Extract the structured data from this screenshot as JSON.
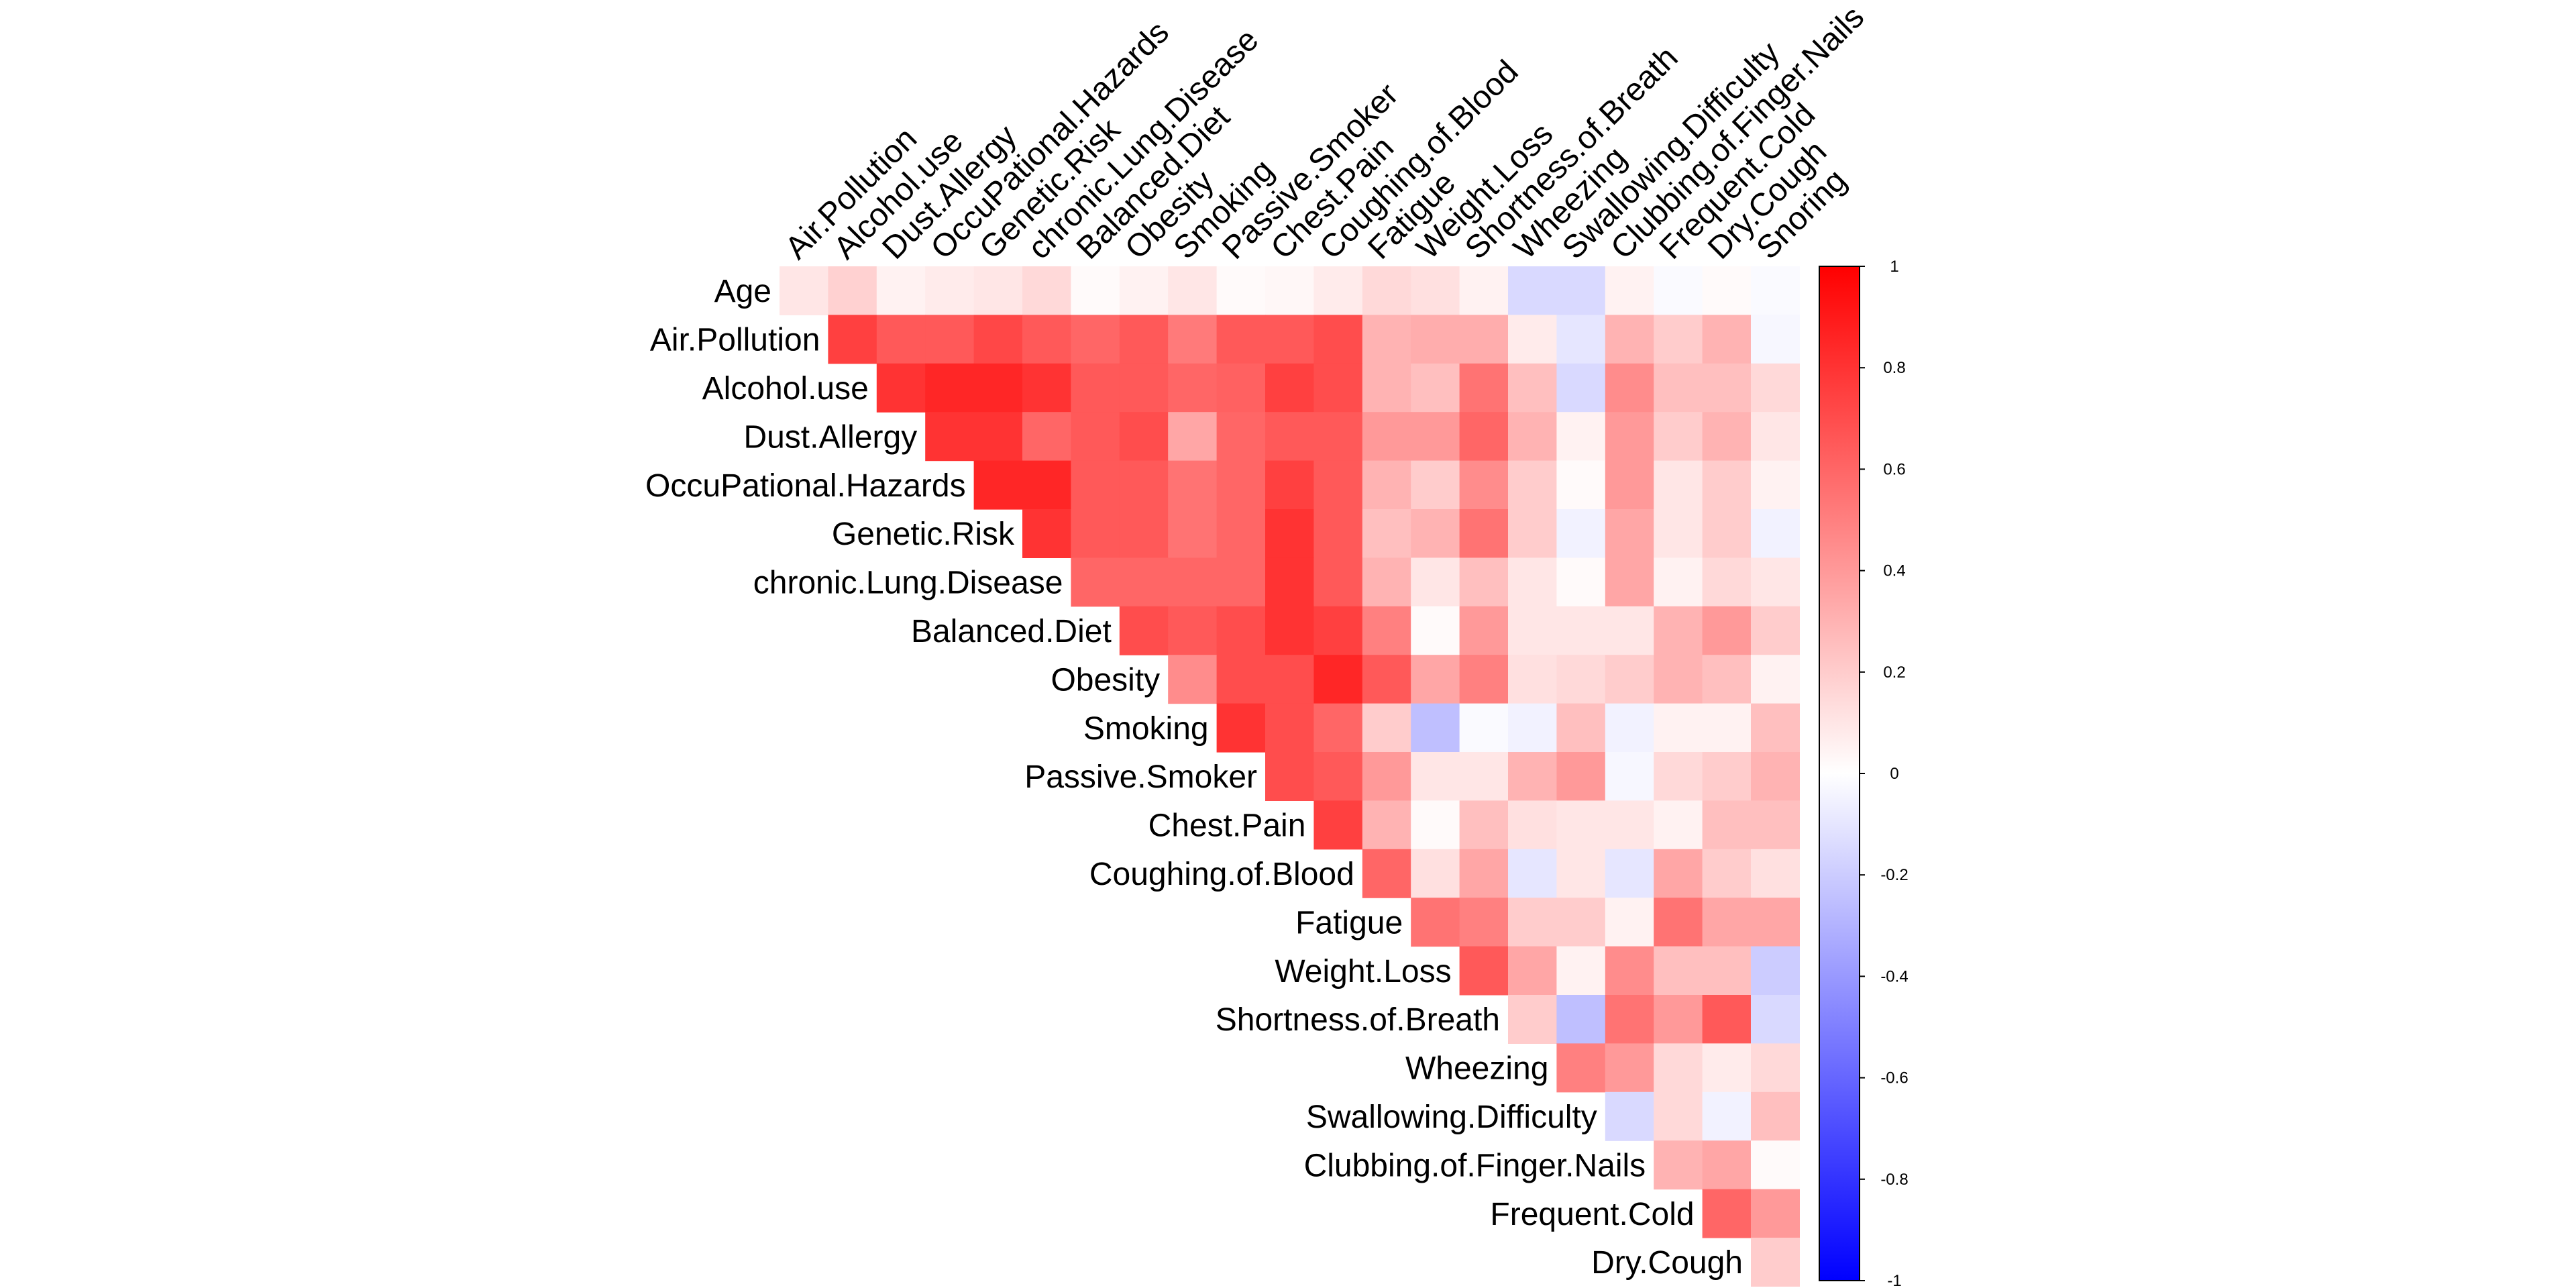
{
  "chart_data": {
    "type": "heatmap",
    "layout": "upper-triangle",
    "title": "",
    "xlabel": "",
    "ylabel": "",
    "row_labels": [
      "Age",
      "Air.Pollution",
      "Alcohol.use",
      "Dust.Allergy",
      "OccuPational.Hazards",
      "Genetic.Risk",
      "chronic.Lung.Disease",
      "Balanced.Diet",
      "Obesity",
      "Smoking",
      "Passive.Smoker",
      "Chest.Pain",
      "Coughing.of.Blood",
      "Fatigue",
      "Weight.Loss",
      "Shortness.of.Breath",
      "Wheezing",
      "Swallowing.Difficulty",
      "Clubbing.of.Finger.Nails",
      "Frequent.Cold",
      "Dry.Cough"
    ],
    "col_labels": [
      "Air.Pollution",
      "Alcohol.use",
      "Dust.Allergy",
      "OccuPational.Hazards",
      "Genetic.Risk",
      "chronic.Lung.Disease",
      "Balanced.Diet",
      "Obesity",
      "Smoking",
      "Passive.Smoker",
      "Chest.Pain",
      "Coughing.of.Blood",
      "Fatigue",
      "Weight.Loss",
      "Shortness.of.Breath",
      "Wheezing",
      "Swallowing.Difficulty",
      "Clubbing.of.Finger.Nails",
      "Frequent.Cold",
      "Dry.Cough",
      "Snoring"
    ],
    "values": [
      [
        0.1,
        0.18,
        0.05,
        0.08,
        0.1,
        0.15,
        0.02,
        0.05,
        0.1,
        0.02,
        0.03,
        0.08,
        0.15,
        0.12,
        0.05,
        -0.15,
        -0.15,
        0.05,
        -0.02,
        0.02,
        -0.02
      ],
      [
        0.75,
        0.65,
        0.65,
        0.72,
        0.65,
        0.6,
        0.65,
        0.52,
        0.65,
        0.65,
        0.7,
        0.3,
        0.32,
        0.32,
        0.08,
        -0.1,
        0.3,
        0.2,
        0.3,
        -0.03
      ],
      [
        0.8,
        0.85,
        0.85,
        0.8,
        0.65,
        0.65,
        0.6,
        0.62,
        0.75,
        0.7,
        0.3,
        0.25,
        0.55,
        0.25,
        -0.15,
        0.45,
        0.25,
        0.25,
        0.15
      ],
      [
        0.8,
        0.8,
        0.6,
        0.65,
        0.7,
        0.35,
        0.6,
        0.65,
        0.65,
        0.4,
        0.4,
        0.6,
        0.3,
        0.05,
        0.4,
        0.2,
        0.3,
        0.1
      ],
      [
        0.85,
        0.85,
        0.65,
        0.65,
        0.55,
        0.6,
        0.75,
        0.65,
        0.3,
        0.2,
        0.45,
        0.2,
        0.02,
        0.4,
        0.1,
        0.2,
        0.05
      ],
      [
        0.8,
        0.65,
        0.65,
        0.55,
        0.6,
        0.8,
        0.65,
        0.25,
        0.3,
        0.55,
        0.2,
        -0.05,
        0.35,
        0.1,
        0.2,
        -0.05
      ],
      [
        0.6,
        0.6,
        0.6,
        0.6,
        0.8,
        0.65,
        0.3,
        0.1,
        0.25,
        0.1,
        0.02,
        0.35,
        0.05,
        0.15,
        0.1
      ],
      [
        0.7,
        0.65,
        0.7,
        0.8,
        0.75,
        0.5,
        0.02,
        0.4,
        0.1,
        0.1,
        0.1,
        0.3,
        0.4,
        0.2
      ],
      [
        0.45,
        0.7,
        0.7,
        0.85,
        0.65,
        0.35,
        0.5,
        0.12,
        0.15,
        0.2,
        0.3,
        0.25,
        0.05
      ],
      [
        0.8,
        0.7,
        0.6,
        0.2,
        -0.25,
        -0.02,
        -0.05,
        0.25,
        -0.05,
        0.05,
        0.05,
        0.25
      ],
      [
        0.7,
        0.65,
        0.4,
        0.1,
        0.1,
        0.3,
        0.4,
        -0.03,
        0.15,
        0.2,
        0.3
      ],
      [
        0.75,
        0.3,
        0.02,
        0.25,
        0.12,
        0.1,
        0.1,
        0.05,
        0.25,
        0.25
      ],
      [
        0.6,
        0.12,
        0.35,
        -0.1,
        0.1,
        -0.1,
        0.35,
        0.2,
        0.12
      ],
      [
        0.55,
        0.5,
        0.2,
        0.2,
        0.05,
        0.55,
        0.35,
        0.35
      ],
      [
        0.65,
        0.35,
        0.05,
        0.45,
        0.25,
        0.25,
        -0.2
      ],
      [
        0.2,
        -0.25,
        0.55,
        0.4,
        0.65,
        -0.15
      ],
      [
        0.5,
        0.4,
        0.15,
        0.08,
        0.15
      ],
      [
        -0.15,
        0.15,
        -0.05,
        0.25
      ],
      [
        0.3,
        0.35,
        0.02
      ],
      [
        0.6,
        0.4
      ],
      [
        0.2
      ]
    ],
    "legend": {
      "placement": "right",
      "ticks": [
        1,
        0.8,
        0.6,
        0.4,
        0.2,
        0,
        -0.2,
        -0.4,
        -0.6,
        -0.8,
        -1
      ],
      "tick_labels": [
        "1",
        "0.8",
        "0.6",
        "0.4",
        "0.2",
        "0",
        "-0.2",
        "-0.4",
        "-0.6",
        "-0.8",
        "-1"
      ],
      "range": [
        -1,
        1
      ]
    },
    "colors": {
      "low": "#0000ff",
      "mid": "#ffffff",
      "high": "#ff0000"
    },
    "grid": false
  }
}
